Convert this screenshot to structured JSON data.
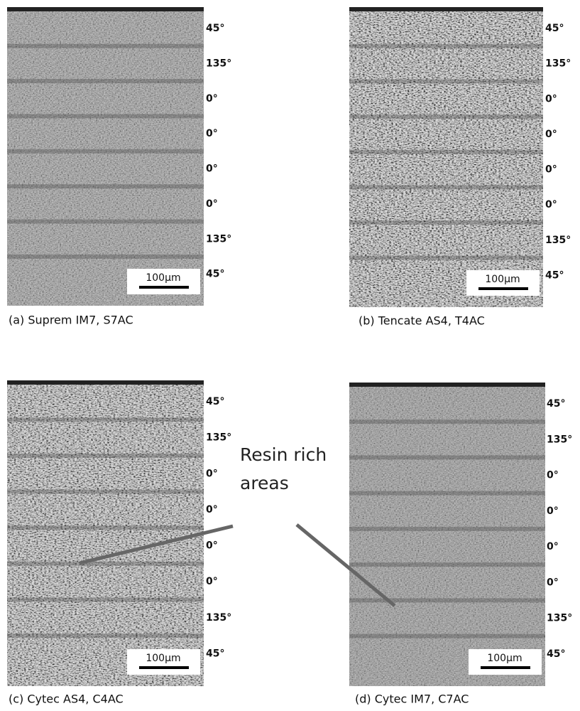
{
  "panels": [
    {
      "caption": "(a) Suprem IM7, S7AC",
      "scale_bar": "100µm",
      "plies": [
        "45°",
        "135°",
        "0°",
        "0°",
        "0°",
        "0°",
        "135°",
        "45°"
      ]
    },
    {
      "caption": "(b) Tencate AS4, T4AC",
      "scale_bar": "100µm",
      "plies": [
        "45°",
        "135°",
        "0°",
        "0°",
        "0°",
        "0°",
        "135°",
        "45°"
      ]
    },
    {
      "caption": "(c) Cytec AS4, C4AC",
      "scale_bar": "100µm",
      "plies": [
        "45°",
        "135°",
        "0°",
        "0°",
        "0°",
        "0°",
        "135°",
        "45°"
      ]
    },
    {
      "caption": "(d) Cytec IM7, C7AC",
      "scale_bar": "100µm",
      "plies": [
        "45°",
        "135°",
        "0°",
        "0°",
        "0°",
        "0°",
        "135°",
        "45°"
      ]
    }
  ],
  "annotation": {
    "lines": [
      "Resin rich",
      "areas"
    ]
  }
}
